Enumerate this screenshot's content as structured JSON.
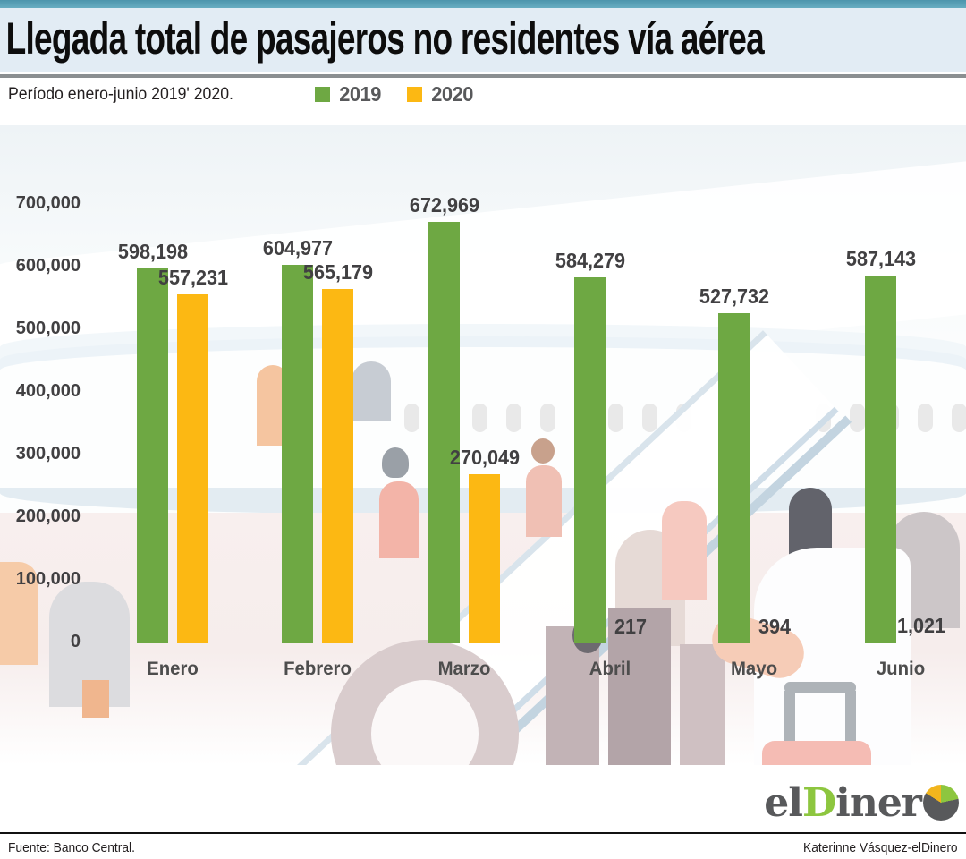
{
  "header": {
    "title": "Llegada total de pasajeros no residentes vía aérea",
    "subtitle": "Período enero-junio 2019' 2020."
  },
  "chart_data": {
    "type": "bar",
    "title": "Llegada total de pasajeros no residentes vía aérea",
    "subtitle": "Período enero-junio 2019' 2020.",
    "categories": [
      "Enero",
      "Febrero",
      "Marzo",
      "Abril",
      "Mayo",
      "Junio"
    ],
    "series": [
      {
        "name": "2019",
        "color": "#6ea843",
        "values": [
          598198,
          604977,
          672969,
          584279,
          527732,
          587143
        ],
        "labels": [
          "598,198",
          "604,977",
          "672,969",
          "584,279",
          "527,732",
          "587,143"
        ]
      },
      {
        "name": "2020",
        "color": "#fcb813",
        "values": [
          557231,
          565179,
          270049,
          217,
          394,
          1021
        ],
        "labels": [
          "557,231",
          "565,179",
          "270,049",
          "217",
          "394",
          "1,021"
        ]
      }
    ],
    "xlabel": "",
    "ylabel": "",
    "ylim": [
      0,
      700000
    ],
    "ytick_interval": 100000,
    "ytick_labels": [
      "0",
      "100,000",
      "200,000",
      "300,000",
      "400,000",
      "500,000",
      "600,000",
      "700,000"
    ],
    "grid": false,
    "legend_position": "top"
  },
  "footer": {
    "source": "Fuente: Banco Central.",
    "credit": "Katerinne Vásquez-elDinero"
  },
  "logo": {
    "part_el": "el",
    "part_d": "D",
    "part_iner": "iner"
  }
}
